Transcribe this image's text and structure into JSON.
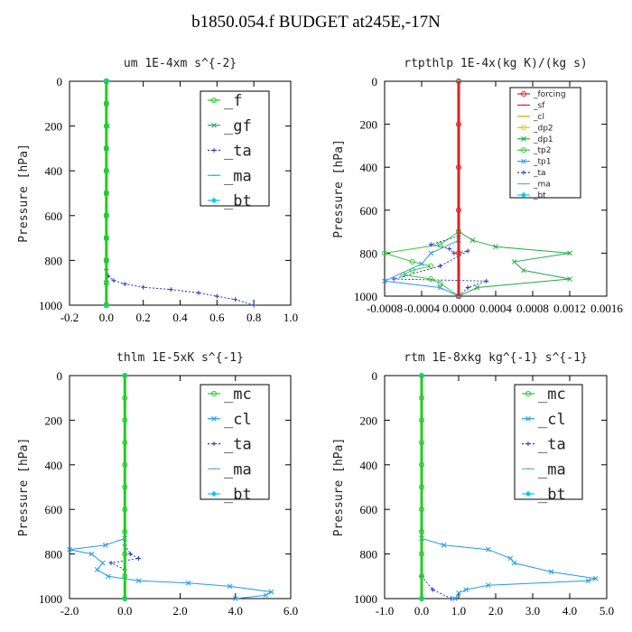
{
  "title": "b1850.054.f  BUDGET at245E,-17N",
  "chart_data": [
    {
      "type": "line",
      "title": "um  1E-4xm s^{-2}",
      "ylabel": "Pressure [hPa]",
      "xlim": [
        -0.2,
        1.0
      ],
      "ylim": [
        1000,
        0
      ],
      "xticks": [
        "-0.2",
        "0.0",
        "0.2",
        "0.4",
        "0.6",
        "0.8",
        "1.0"
      ],
      "yticks": [
        "0",
        "200",
        "400",
        "600",
        "800",
        "1000"
      ],
      "legend_style": "big",
      "legend": [
        "_f",
        "_gf",
        "_ta",
        "_ma",
        "_bt"
      ],
      "series": [
        {
          "name": "_f",
          "color": "#22cc22",
          "marker": "o",
          "dash": false,
          "points": [
            [
              0.0,
              0
            ],
            [
              0.0,
              100
            ],
            [
              0.0,
              200
            ],
            [
              0.0,
              300
            ],
            [
              0.0,
              400
            ],
            [
              0.0,
              500
            ],
            [
              0.0,
              600
            ],
            [
              0.0,
              700
            ],
            [
              0.0,
              800
            ],
            [
              0.0,
              900
            ],
            [
              0.0,
              1000
            ]
          ]
        },
        {
          "name": "_gf",
          "color": "#22aa66",
          "marker": "x",
          "dash": false,
          "points": [
            [
              0.0,
              0
            ],
            [
              0.0,
              100
            ],
            [
              0.005,
              200
            ],
            [
              0.0,
              300
            ],
            [
              0.0,
              400
            ],
            [
              0.0,
              500
            ],
            [
              0.0,
              600
            ],
            [
              0.0,
              700
            ],
            [
              0.0,
              800
            ],
            [
              0.0,
              900
            ],
            [
              0.0,
              1000
            ]
          ]
        },
        {
          "name": "_ta",
          "color": "#2233cc",
          "marker": "+",
          "dash": true,
          "points": [
            [
              0.0,
              0
            ],
            [
              0.0,
              100
            ],
            [
              0.0,
              200
            ],
            [
              0.0,
              300
            ],
            [
              0.0,
              400
            ],
            [
              0.0,
              500
            ],
            [
              0.0,
              600
            ],
            [
              0.0,
              700
            ],
            [
              0.0,
              800
            ],
            [
              0.0,
              840
            ],
            [
              0.01,
              870
            ],
            [
              0.04,
              890
            ],
            [
              0.1,
              905
            ],
            [
              0.2,
              920
            ],
            [
              0.35,
              930
            ],
            [
              0.5,
              945
            ],
            [
              0.6,
              960
            ],
            [
              0.7,
              975
            ],
            [
              0.8,
              1000
            ]
          ]
        },
        {
          "name": "_ma",
          "color": "#33aaee",
          "marker": "-",
          "dash": false,
          "points": [
            [
              0.0,
              0
            ],
            [
              0.0,
              200
            ],
            [
              0.0,
              400
            ],
            [
              0.0,
              600
            ],
            [
              0.0,
              800
            ],
            [
              0.0,
              1000
            ]
          ]
        },
        {
          "name": "_bt",
          "color": "#00ccee",
          "marker": "d",
          "dash": false,
          "points": [
            [
              0.0,
              0
            ],
            [
              0.0,
              200
            ],
            [
              0.0,
              400
            ],
            [
              0.0,
              600
            ],
            [
              0.0,
              800
            ],
            [
              0.0,
              1000
            ]
          ]
        }
      ]
    },
    {
      "type": "line",
      "title": "rtpthlp  1E-4x(kg K)/(kg s)",
      "ylabel": "Pressure [hPa]",
      "xlim": [
        -0.0008,
        0.0016
      ],
      "ylim": [
        1000,
        0
      ],
      "xticks": [
        "-0.0008",
        "-0.0004",
        "0.0000",
        "0.0004",
        "0.0008",
        "0.0012",
        "0.0016"
      ],
      "yticks": [
        "0",
        "200",
        "400",
        "600",
        "800",
        "1000"
      ],
      "legend_style": "small",
      "legend": [
        "_forcing",
        "_sf",
        "_cl",
        "_dp2",
        "_dp1",
        "_tp2",
        "_tp1",
        "_ta",
        "_ma",
        "_bt"
      ],
      "series": [
        {
          "name": "_forcing",
          "color": "#dd2222",
          "marker": "o",
          "dash": false,
          "points": [
            [
              0.0,
              0
            ],
            [
              0.0,
              200
            ],
            [
              0.0,
              400
            ],
            [
              0.0,
              600
            ],
            [
              0.0,
              800
            ],
            [
              0.0,
              1000
            ]
          ]
        },
        {
          "name": "_sf",
          "color": "#dd2222",
          "marker": "-",
          "dash": false,
          "points": [
            [
              0.0,
              0
            ],
            [
              0.0,
              1000
            ]
          ]
        },
        {
          "name": "_cl",
          "color": "#ddaa00",
          "marker": "-",
          "dash": false,
          "points": [
            [
              0.0,
              0
            ],
            [
              0.0,
              1000
            ]
          ]
        },
        {
          "name": "_dp2",
          "color": "#ddcc00",
          "marker": "o",
          "dash": false,
          "points": [
            [
              0.0,
              0
            ],
            [
              0.0,
              1000
            ]
          ]
        },
        {
          "name": "_dp1",
          "color": "#22aa44",
          "marker": "x",
          "dash": false,
          "points": [
            [
              0.0,
              700
            ],
            [
              0.00015,
              740
            ],
            [
              0.0004,
              770
            ],
            [
              0.0012,
              800
            ],
            [
              0.0006,
              840
            ],
            [
              0.0007,
              880
            ],
            [
              0.0012,
              920
            ],
            [
              0.0002,
              960
            ],
            [
              0.0,
              1000
            ]
          ]
        },
        {
          "name": "_tp2",
          "color": "#33cc33",
          "marker": "o",
          "dash": false,
          "points": [
            [
              0.0,
              700
            ],
            [
              -0.0002,
              760
            ],
            [
              -0.0008,
              800
            ],
            [
              -0.0005,
              840
            ],
            [
              -0.0003,
              860
            ],
            [
              -0.0005,
              880
            ],
            [
              -0.0006,
              900
            ],
            [
              -0.0003,
              920
            ],
            [
              -0.0002,
              940
            ],
            [
              0.0,
              1000
            ]
          ]
        },
        {
          "name": "_tp1",
          "color": "#3399ee",
          "marker": "x",
          "dash": false,
          "points": [
            [
              0.0,
              740
            ],
            [
              -0.0003,
              800
            ],
            [
              -0.0004,
              850
            ],
            [
              -0.0008,
              930
            ],
            [
              -0.0002,
              960
            ],
            [
              0.0,
              1000
            ]
          ]
        },
        {
          "name": "_ta",
          "color": "#2233cc",
          "marker": "+",
          "dash": true,
          "points": [
            [
              0.0,
              720
            ],
            [
              -0.0003,
              760
            ],
            [
              -0.0001,
              780
            ],
            [
              -5e-05,
              800
            ],
            [
              0.0001,
              790
            ],
            [
              -0.0002,
              860
            ],
            [
              -0.0007,
              920
            ],
            [
              0.0003,
              930
            ],
            [
              0.0001,
              960
            ],
            [
              0.0,
              1000
            ]
          ]
        },
        {
          "name": "_ma",
          "color": "#66aaee",
          "marker": "-",
          "dash": false,
          "points": [
            [
              0.0,
              0
            ],
            [
              0.0,
              1000
            ]
          ]
        },
        {
          "name": "_bt",
          "color": "#00ccee",
          "marker": "d",
          "dash": false,
          "points": [
            [
              0.0,
              0
            ],
            [
              0.0,
              1000
            ]
          ]
        }
      ]
    },
    {
      "type": "line",
      "title": "thlm  1E-5xK s^{-1}",
      "ylabel": "Pressure [hPa]",
      "xlim": [
        -2.0,
        6.0
      ],
      "ylim": [
        1000,
        0
      ],
      "xticks": [
        "-2.0",
        "0.0",
        "2.0",
        "4.0",
        "6.0"
      ],
      "yticks": [
        "0",
        "200",
        "400",
        "600",
        "800",
        "1000"
      ],
      "legend_style": "big",
      "legend": [
        "_mc",
        "_cl",
        "_ta",
        "_ma",
        "_bt"
      ],
      "series": [
        {
          "name": "_mc",
          "color": "#22cc22",
          "marker": "o",
          "dash": false,
          "points": [
            [
              0.0,
              0
            ],
            [
              0.0,
              100
            ],
            [
              0.0,
              200
            ],
            [
              0.0,
              300
            ],
            [
              0.0,
              400
            ],
            [
              0.0,
              500
            ],
            [
              0.0,
              600
            ],
            [
              0.0,
              700
            ],
            [
              0.0,
              800
            ],
            [
              0.0,
              900
            ],
            [
              0.0,
              1000
            ]
          ]
        },
        {
          "name": "_cl",
          "color": "#2299ee",
          "marker": "x",
          "dash": false,
          "points": [
            [
              0.0,
              730
            ],
            [
              -0.7,
              760
            ],
            [
              -2.0,
              780
            ],
            [
              -1.2,
              800
            ],
            [
              -0.8,
              840
            ],
            [
              -1.0,
              870
            ],
            [
              -0.6,
              900
            ],
            [
              0.5,
              920
            ],
            [
              2.3,
              930
            ],
            [
              3.8,
              945
            ],
            [
              5.3,
              970
            ],
            [
              5.1,
              985
            ],
            [
              4.0,
              1000
            ]
          ]
        },
        {
          "name": "_ta",
          "color": "#2233cc",
          "marker": "+",
          "dash": true,
          "points": [
            [
              0.0,
              760
            ],
            [
              0.2,
              800
            ],
            [
              0.5,
              820
            ],
            [
              -0.5,
              840
            ],
            [
              0.0,
              870
            ],
            [
              0.0,
              1000
            ]
          ]
        },
        {
          "name": "_ma",
          "color": "#66aaee",
          "marker": "-",
          "dash": false,
          "points": [
            [
              0.0,
              0
            ],
            [
              0.0,
              1000
            ]
          ]
        },
        {
          "name": "_bt",
          "color": "#00ccee",
          "marker": "d",
          "dash": false,
          "points": [
            [
              0.0,
              0
            ],
            [
              0.0,
              1000
            ]
          ]
        }
      ]
    },
    {
      "type": "line",
      "title": "rtm  1E-8xkg kg^{-1} s^{-1}",
      "ylabel": "Pressure [hPa]",
      "xlim": [
        -1.0,
        5.0
      ],
      "ylim": [
        1000,
        0
      ],
      "xticks": [
        "-1.0",
        "0.0",
        "1.0",
        "2.0",
        "3.0",
        "4.0",
        "5.0"
      ],
      "yticks": [
        "0",
        "200",
        "400",
        "600",
        "800",
        "1000"
      ],
      "legend_style": "big",
      "legend": [
        "_mc",
        "_cl",
        "_ta",
        "_ma",
        "_bt"
      ],
      "series": [
        {
          "name": "_mc",
          "color": "#22cc22",
          "marker": "o",
          "dash": false,
          "points": [
            [
              0.0,
              0
            ],
            [
              0.0,
              100
            ],
            [
              0.0,
              200
            ],
            [
              0.0,
              300
            ],
            [
              0.0,
              400
            ],
            [
              0.0,
              500
            ],
            [
              0.0,
              600
            ],
            [
              0.0,
              700
            ],
            [
              0.0,
              800
            ],
            [
              0.0,
              900
            ],
            [
              0.0,
              1000
            ]
          ]
        },
        {
          "name": "_cl",
          "color": "#2299ee",
          "marker": "x",
          "dash": false,
          "points": [
            [
              0.0,
              730
            ],
            [
              0.6,
              760
            ],
            [
              1.8,
              780
            ],
            [
              2.4,
              820
            ],
            [
              2.5,
              840
            ],
            [
              3.5,
              880
            ],
            [
              4.7,
              910
            ],
            [
              4.5,
              920
            ],
            [
              1.8,
              940
            ],
            [
              1.2,
              960
            ],
            [
              1.0,
              975
            ],
            [
              0.9,
              1000
            ]
          ]
        },
        {
          "name": "_ta",
          "color": "#2233cc",
          "marker": "+",
          "dash": true,
          "points": [
            [
              0.0,
              900
            ],
            [
              0.3,
              960
            ],
            [
              0.8,
              1000
            ]
          ]
        },
        {
          "name": "_ma",
          "color": "#66aaee",
          "marker": "-",
          "dash": false,
          "points": [
            [
              0.0,
              0
            ],
            [
              0.0,
              1000
            ]
          ]
        },
        {
          "name": "_bt",
          "color": "#00ccee",
          "marker": "d",
          "dash": false,
          "points": [
            [
              0.0,
              0
            ],
            [
              0.0,
              1000
            ]
          ]
        }
      ]
    }
  ]
}
